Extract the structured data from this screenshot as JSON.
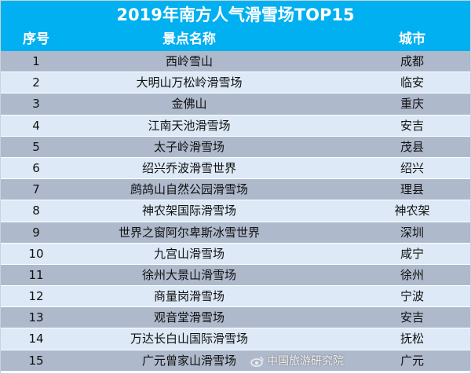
{
  "title": "2019年南方人气滑雪场TOP15",
  "columns": [
    "序号",
    "景点名称",
    "城市"
  ],
  "rows": [
    [
      "1",
      "西岭雪山",
      "成都"
    ],
    [
      "2",
      "大明山万松岭滑雪场",
      "临安"
    ],
    [
      "3",
      "金佛山",
      "重庆"
    ],
    [
      "4",
      "江南天池滑雪场",
      "安吉"
    ],
    [
      "5",
      "太子岭滑雪场",
      "茂县"
    ],
    [
      "6",
      "绍兴乔波滑雪世界",
      "绍兴"
    ],
    [
      "7",
      "鹧鸪山自然公园滑雪场",
      "理县"
    ],
    [
      "8",
      "神农架国际滑雪场",
      "神农架"
    ],
    [
      "9",
      "世界之窗阿尔卑斯冰雪世界",
      "深圳"
    ],
    [
      "10",
      "九宫山滑雪场",
      "咸宁"
    ],
    [
      "11",
      "徐州大景山滑雪场",
      "徐州"
    ],
    [
      "12",
      "商量岗滑雪场",
      "宁波"
    ],
    [
      "13",
      "观音堂滑雪场",
      "安吉"
    ],
    [
      "14",
      "万达长白山国际滑雪场",
      "抚松"
    ],
    [
      "15",
      "广元曾家山滑雪场",
      "广元"
    ]
  ],
  "watermark": "中国旅游研究院",
  "colors": {
    "header": "#00b0f0",
    "row_odd": "#aeb9cc",
    "row_even": "#dde9f6"
  }
}
